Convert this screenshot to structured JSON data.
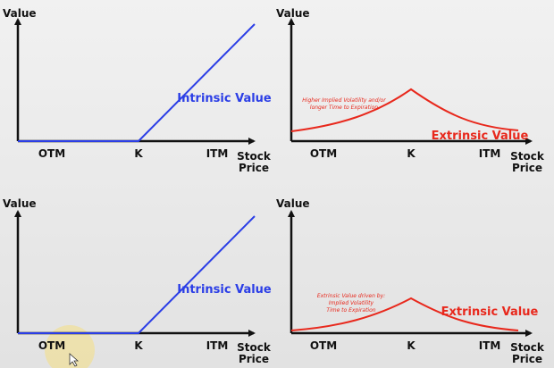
{
  "panels": [
    {
      "y_axis_label": "Value",
      "x_labels": [
        "OTM",
        "K",
        "ITM"
      ],
      "x_axis_label": [
        "Stock",
        "Price"
      ],
      "curve_label": "Intrinsic Value"
    },
    {
      "y_axis_label": "Value",
      "x_labels": [
        "OTM",
        "K",
        "ITM"
      ],
      "x_axis_label": [
        "Stock",
        "Price"
      ],
      "curve_label": "Extrinsic Value",
      "annotation": [
        "Higher Implied Volatility and/or",
        "longer Time to Expiration"
      ]
    },
    {
      "y_axis_label": "Value",
      "x_labels": [
        "OTM",
        "K",
        "ITM"
      ],
      "x_axis_label": [
        "Stock",
        "Price"
      ],
      "curve_label": "Intrinsic Value"
    },
    {
      "y_axis_label": "Value",
      "x_labels": [
        "OTM",
        "K",
        "ITM"
      ],
      "x_axis_label": [
        "Stock",
        "Price"
      ],
      "curve_label": "Extrinsic Value",
      "annotation": [
        "Extrinsic Value driven by:",
        "Implied Volatility",
        "Time to Expiration"
      ]
    }
  ]
}
